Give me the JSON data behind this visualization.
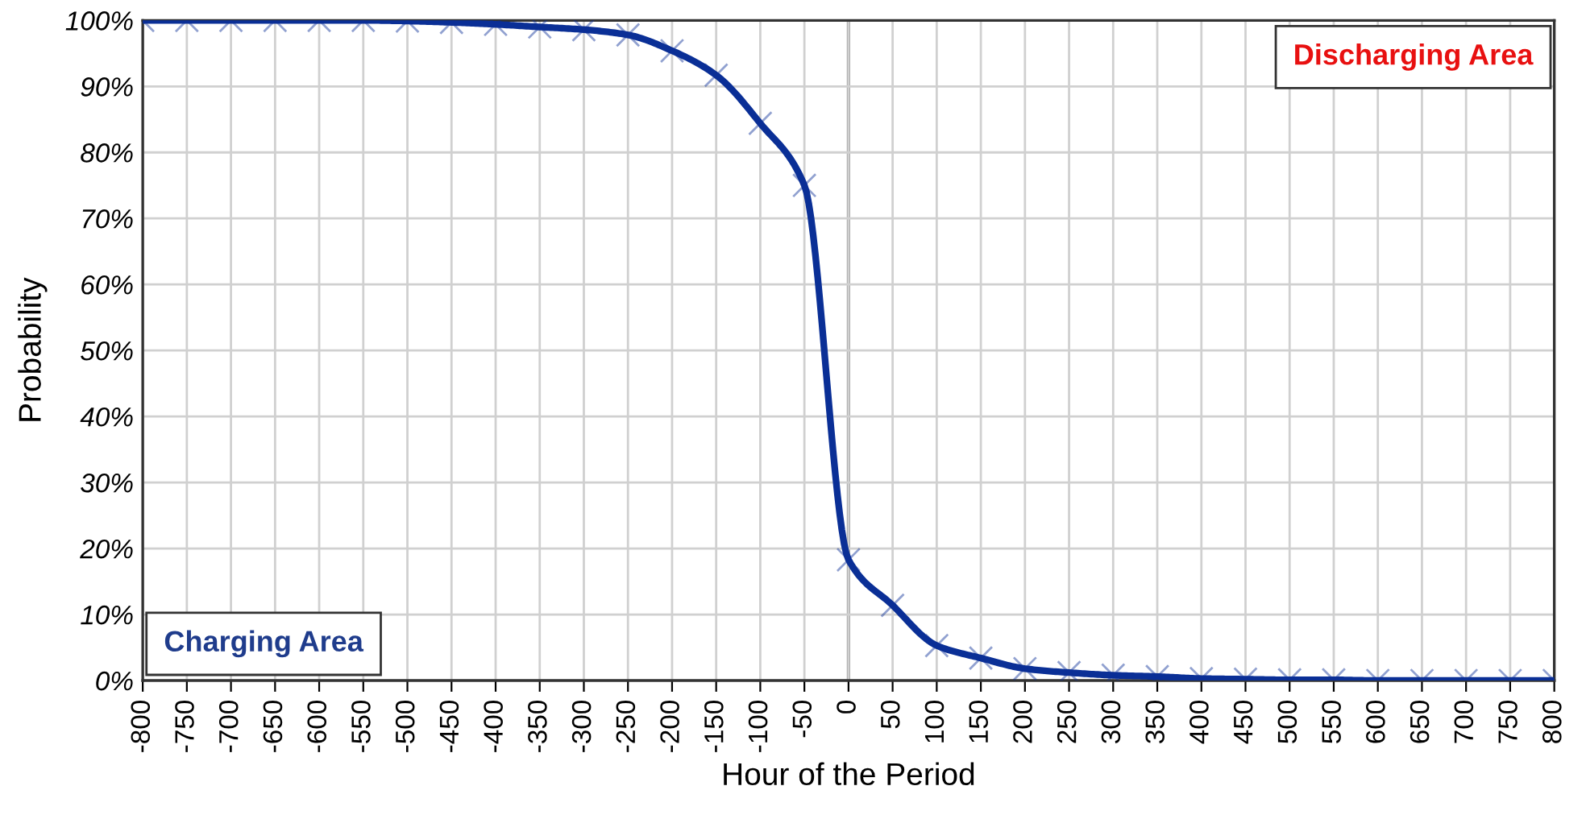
{
  "chart_data": {
    "type": "line",
    "xlabel": "Hour of the Period",
    "ylabel": "Probability",
    "x": [
      -800,
      -750,
      -700,
      -650,
      -600,
      -550,
      -500,
      -450,
      -400,
      -350,
      -300,
      -250,
      -200,
      -150,
      -100,
      -50,
      0,
      50,
      100,
      150,
      200,
      250,
      300,
      350,
      400,
      450,
      500,
      550,
      600,
      650,
      700,
      750,
      800
    ],
    "series": [
      {
        "color": "#0a2f96",
        "values": [
          100,
          100,
          100,
          100,
          100,
          100,
          99.9,
          99.7,
          99.4,
          99,
          98.6,
          97.8,
          95.4,
          91.7,
          84.4,
          75,
          18.3,
          11.4,
          5.3,
          3.4,
          1.8,
          1.2,
          0.8,
          0.6,
          0.3,
          0.2,
          0.1,
          0.1,
          0,
          0,
          0,
          0,
          0
        ]
      }
    ],
    "marker": "cross",
    "line_style": "solid",
    "grid": true,
    "xlim": [
      -800,
      800
    ],
    "xticks": [
      -800,
      -750,
      -700,
      -650,
      -600,
      -550,
      -500,
      -450,
      -400,
      -350,
      -300,
      -250,
      -200,
      -150,
      -100,
      -50,
      0,
      50,
      100,
      150,
      200,
      250,
      300,
      350,
      400,
      450,
      500,
      550,
      600,
      650,
      700,
      750,
      800
    ],
    "ylim": [
      0,
      100
    ],
    "yticks": [
      {
        "value": 0,
        "label": "0%"
      },
      {
        "value": 10,
        "label": "10%"
      },
      {
        "value": 20,
        "label": "20%"
      },
      {
        "value": 30,
        "label": "30%"
      },
      {
        "value": 40,
        "label": "40%"
      },
      {
        "value": 50,
        "label": "50%"
      },
      {
        "value": 60,
        "label": "60%"
      },
      {
        "value": 70,
        "label": "70%"
      },
      {
        "value": 80,
        "label": "80%"
      },
      {
        "value": 90,
        "label": "90%"
      },
      {
        "value": 100,
        "label": "100%"
      }
    ],
    "annotations": [
      "Charging Area",
      "Discharging Area"
    ]
  }
}
